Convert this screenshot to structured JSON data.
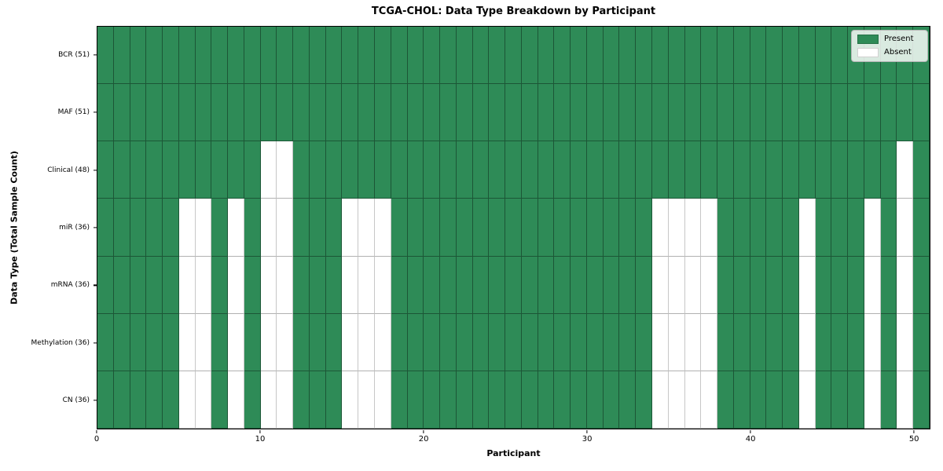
{
  "chart_data": {
    "type": "heatmap",
    "title": "TCGA-CHOL: Data Type Breakdown by Participant",
    "xlabel": "Participant",
    "ylabel": "Data Type (Total Sample Count)",
    "x_ticks": [
      0,
      10,
      20,
      30,
      40,
      50
    ],
    "x_range": [
      0,
      51
    ],
    "n_participants": 51,
    "grid": true,
    "colors": {
      "present": "#2e8b57",
      "absent": "#ffffff",
      "spine": "#000000"
    },
    "legend": {
      "position": "upper right",
      "items": [
        {
          "label": "Present",
          "color": "#2e8b57"
        },
        {
          "label": "Absent",
          "color": "#ffffff"
        }
      ]
    },
    "rows": [
      {
        "label": "BCR (51)",
        "name": "BCR",
        "total_samples": 51,
        "absent_participants": []
      },
      {
        "label": "MAF (51)",
        "name": "MAF",
        "total_samples": 51,
        "absent_participants": []
      },
      {
        "label": "Clinical (48)",
        "name": "Clinical",
        "total_samples": 48,
        "absent_participants": [
          10,
          11,
          49
        ]
      },
      {
        "label": "miR (36)",
        "name": "miR",
        "total_samples": 36,
        "absent_participants": [
          5,
          6,
          8,
          10,
          11,
          15,
          16,
          17,
          34,
          35,
          36,
          37,
          43,
          47,
          49
        ]
      },
      {
        "label": "mRNA (36)",
        "name": "mRNA",
        "total_samples": 36,
        "absent_participants": [
          5,
          6,
          8,
          10,
          11,
          15,
          16,
          17,
          34,
          35,
          36,
          37,
          43,
          47,
          49
        ]
      },
      {
        "label": "Methylation (36)",
        "name": "Methylation",
        "total_samples": 36,
        "absent_participants": [
          5,
          6,
          8,
          10,
          11,
          15,
          16,
          17,
          34,
          35,
          36,
          37,
          43,
          47,
          49
        ]
      },
      {
        "label": "CN (36)",
        "name": "CN",
        "total_samples": 36,
        "absent_participants": [
          5,
          6,
          8,
          10,
          11,
          15,
          16,
          17,
          34,
          35,
          36,
          37,
          43,
          47,
          49
        ]
      }
    ]
  }
}
